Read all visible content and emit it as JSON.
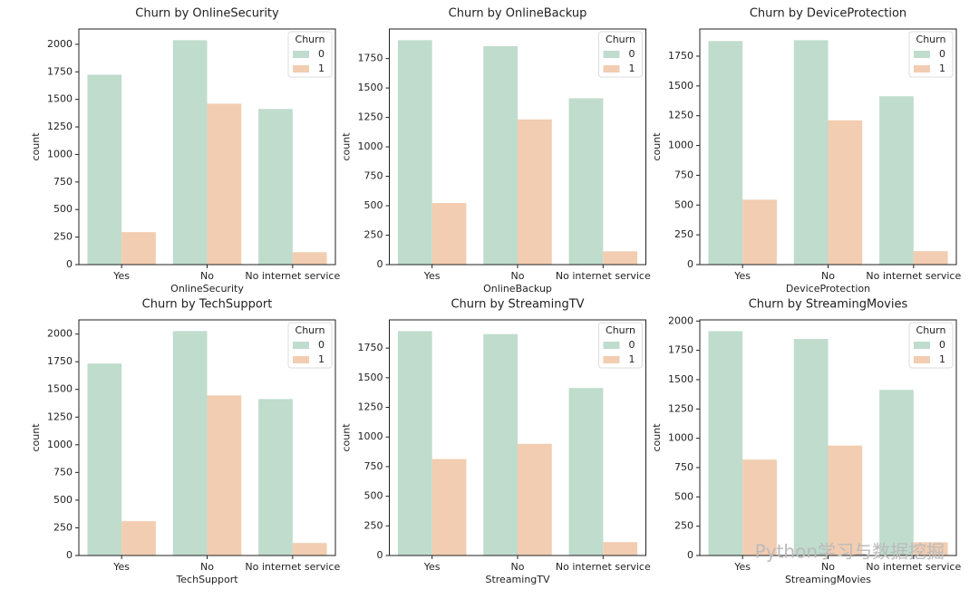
{
  "chart_data": [
    {
      "type": "bar",
      "title": "Churn by OnlineSecurity",
      "xlabel": "OnlineSecurity",
      "ylabel": "count",
      "categories": [
        "Yes",
        "No",
        "No internet service"
      ],
      "series": [
        {
          "name": "0",
          "color": "#bfdccd",
          "values": [
            1724,
            2037,
            1413
          ]
        },
        {
          "name": "1",
          "color": "#f2cdb1",
          "values": [
            295,
            1461,
            113
          ]
        }
      ],
      "ylim": [
        0,
        2139
      ],
      "yticks": [
        0,
        250,
        500,
        750,
        1000,
        1250,
        1500,
        1750,
        2000
      ],
      "legend_title": "Churn",
      "legend": "upper right"
    },
    {
      "type": "bar",
      "title": "Churn by OnlineBackup",
      "xlabel": "OnlineBackup",
      "ylabel": "count",
      "categories": [
        "Yes",
        "No",
        "No internet service"
      ],
      "series": [
        {
          "name": "0",
          "color": "#bfdccd",
          "values": [
            1906,
            1855,
            1413
          ]
        },
        {
          "name": "1",
          "color": "#f2cdb1",
          "values": [
            523,
            1233,
            113
          ]
        }
      ],
      "ylim": [
        0,
        2001
      ],
      "yticks": [
        0,
        250,
        500,
        750,
        1000,
        1250,
        1500,
        1750
      ],
      "legend_title": "Churn",
      "legend": "upper right"
    },
    {
      "type": "bar",
      "title": "Churn by DeviceProtection",
      "xlabel": "DeviceProtection",
      "ylabel": "count",
      "categories": [
        "Yes",
        "No",
        "No internet service"
      ],
      "series": [
        {
          "name": "0",
          "color": "#bfdccd",
          "values": [
            1877,
            1884,
            1413
          ]
        },
        {
          "name": "1",
          "color": "#f2cdb1",
          "values": [
            545,
            1211,
            113
          ]
        }
      ],
      "ylim": [
        0,
        1978
      ],
      "yticks": [
        0,
        250,
        500,
        750,
        1000,
        1250,
        1500,
        1750
      ],
      "legend_title": "Churn",
      "legend": "upper right"
    },
    {
      "type": "bar",
      "title": "Churn by TechSupport",
      "xlabel": "TechSupport",
      "ylabel": "count",
      "categories": [
        "Yes",
        "No",
        "No internet service"
      ],
      "series": [
        {
          "name": "0",
          "color": "#bfdccd",
          "values": [
            1734,
            2027,
            1413
          ]
        },
        {
          "name": "1",
          "color": "#f2cdb1",
          "values": [
            310,
            1446,
            113
          ]
        }
      ],
      "ylim": [
        0,
        2128
      ],
      "yticks": [
        0,
        250,
        500,
        750,
        1000,
        1250,
        1500,
        1750,
        2000
      ],
      "legend_title": "Churn",
      "legend": "upper right"
    },
    {
      "type": "bar",
      "title": "Churn by StreamingTV",
      "xlabel": "StreamingTV",
      "ylabel": "count",
      "categories": [
        "Yes",
        "No",
        "No internet service"
      ],
      "series": [
        {
          "name": "0",
          "color": "#bfdccd",
          "values": [
            1893,
            1868,
            1413
          ]
        },
        {
          "name": "1",
          "color": "#f2cdb1",
          "values": [
            814,
            942,
            113
          ]
        }
      ],
      "ylim": [
        0,
        1988
      ],
      "yticks": [
        0,
        250,
        500,
        750,
        1000,
        1250,
        1500,
        1750
      ],
      "legend_title": "Churn",
      "legend": "upper right"
    },
    {
      "type": "bar",
      "title": "Churn by StreamingMovies",
      "xlabel": "StreamingMovies",
      "ylabel": "count",
      "categories": [
        "Yes",
        "No",
        "No internet service"
      ],
      "series": [
        {
          "name": "0",
          "color": "#bfdccd",
          "values": [
            1914,
            1847,
            1413
          ]
        },
        {
          "name": "1",
          "color": "#f2cdb1",
          "values": [
            818,
            938,
            113
          ]
        }
      ],
      "ylim": [
        0,
        2010
      ],
      "yticks": [
        0,
        250,
        500,
        750,
        1000,
        1250,
        1500,
        1750,
        2000
      ],
      "legend_title": "Churn",
      "legend": "upper right"
    }
  ],
  "watermark": "Python学习与数据挖掘"
}
